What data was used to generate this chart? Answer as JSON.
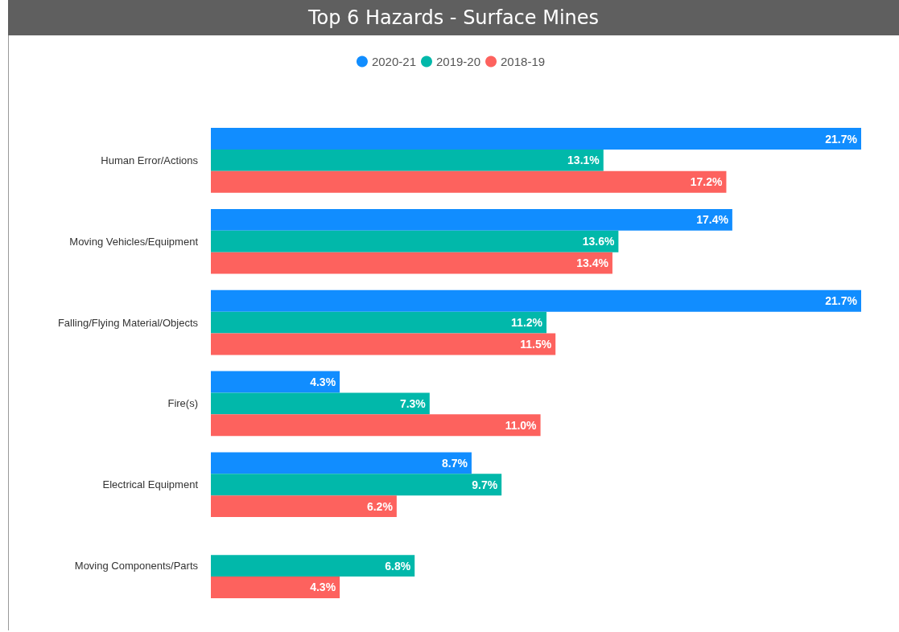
{
  "chart_data": {
    "type": "bar",
    "orientation": "horizontal",
    "title": "Top 6 Hazards - Surface Mines",
    "categories": [
      "Human Error/Actions",
      "Moving Vehicles/Equipment",
      "Falling/Flying Material/Objects",
      "Fire(s)",
      "Electrical Equipment",
      "Moving Components/Parts"
    ],
    "series": [
      {
        "name": "2020-21",
        "color": "#118dff",
        "values": [
          21.7,
          17.4,
          21.7,
          4.3,
          8.7,
          null
        ],
        "value_labels": [
          "21.7%",
          "17.4%",
          "21.7%",
          "4.3%",
          "8.7%",
          null
        ]
      },
      {
        "name": "2019-20",
        "color": "#01b8aa",
        "values": [
          13.1,
          13.6,
          11.2,
          7.3,
          9.7,
          6.8
        ],
        "value_labels": [
          "13.1%",
          "13.6%",
          "11.2%",
          "7.3%",
          "9.7%",
          "6.8%"
        ]
      },
      {
        "name": "2018-19",
        "color": "#fd625e",
        "values": [
          17.2,
          13.4,
          11.5,
          11.0,
          6.2,
          4.3
        ],
        "value_labels": [
          "17.2%",
          "13.4%",
          "11.5%",
          "11.0%",
          "6.2%",
          "4.3%"
        ]
      }
    ],
    "legend": "top",
    "grid": false,
    "tick_labels": "y"
  }
}
